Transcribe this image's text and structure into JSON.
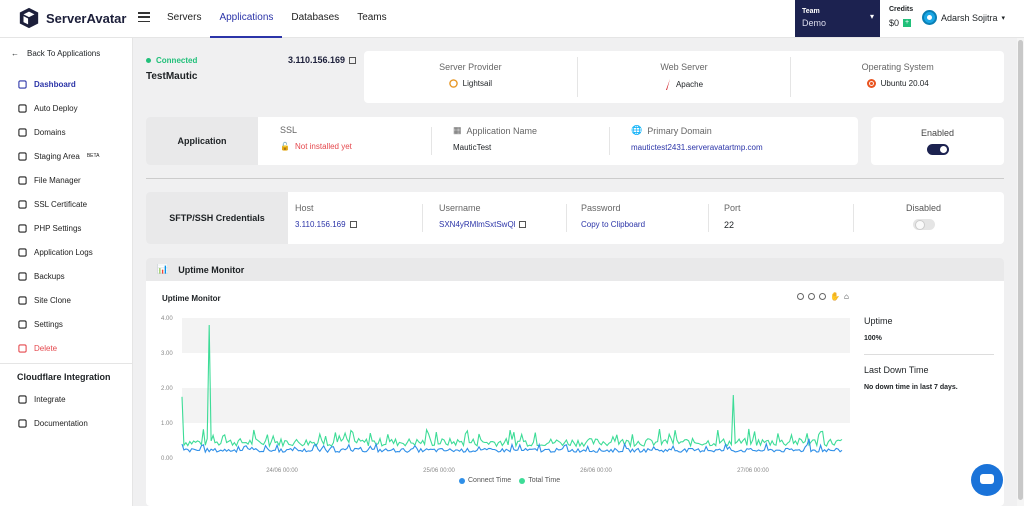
{
  "app": {
    "name": "ServerAvatar"
  },
  "nav": {
    "items": [
      "Servers",
      "Applications",
      "Databases",
      "Teams"
    ],
    "active": "Applications"
  },
  "team": {
    "label": "Team",
    "name": "Demo"
  },
  "credits": {
    "label": "Credits",
    "value": "$0"
  },
  "user": {
    "name": "Adarsh Sojitra"
  },
  "sidebar": {
    "back": "Back To Applications",
    "items": [
      {
        "label": "Dashboard",
        "icon": "dashboard-icon"
      },
      {
        "label": "Auto Deploy",
        "icon": "gear-icon"
      },
      {
        "label": "Domains",
        "icon": "sitemap-icon"
      },
      {
        "label": "Staging Area",
        "icon": "server-icon",
        "badge": "BETA"
      },
      {
        "label": "File Manager",
        "icon": "file-icon"
      },
      {
        "label": "SSL Certificate",
        "icon": "certificate-icon"
      },
      {
        "label": "PHP Settings",
        "icon": "gear-icon"
      },
      {
        "label": "Application Logs",
        "icon": "logs-icon"
      },
      {
        "label": "Backups",
        "icon": "backup-icon"
      },
      {
        "label": "Site Clone",
        "icon": "clone-icon"
      },
      {
        "label": "Settings",
        "icon": "gear-icon"
      },
      {
        "label": "Delete",
        "icon": "trash-icon"
      }
    ],
    "cloudflare_title": "Cloudflare Integration",
    "cloudflare_items": [
      {
        "label": "Integrate",
        "icon": "cloud-icon"
      },
      {
        "label": "Documentation",
        "icon": "book-icon"
      }
    ]
  },
  "application": {
    "status": "Connected",
    "name": "TestMautic",
    "ip": "3.110.156.169"
  },
  "server_info": {
    "provider_label": "Server Provider",
    "provider": "Lightsail",
    "webserver_label": "Web Server",
    "webserver": "Apache",
    "os_label": "Operating System",
    "os": "Ubuntu 20.04"
  },
  "app_panel": {
    "title": "Application",
    "ssl_label": "SSL",
    "ssl_value": "Not installed yet",
    "name_label": "Application Name",
    "name_value": "MauticTest",
    "domain_label": "Primary Domain",
    "domain_value": "mautictest2431.serveravatartmp.com"
  },
  "enabled": {
    "label": "Enabled",
    "state": true
  },
  "sftp": {
    "title": "SFTP/SSH Credentials",
    "host_label": "Host",
    "host": "3.110.156.169",
    "username_label": "Username",
    "username": "SXN4yRMlmSxtSwQl",
    "password_label": "Password",
    "password": "Copy to Clipboard",
    "port_label": "Port",
    "port": "22",
    "status_label": "Disabled",
    "state": false
  },
  "uptime": {
    "header": "Uptime Monitor",
    "chart_title": "Uptime Monitor",
    "uptime_label": "Uptime",
    "uptime_value": "100%",
    "downtime_label": "Last Down Time",
    "downtime_value": "No down time in last 7 days."
  },
  "chart_data": {
    "type": "line",
    "title": "Uptime Monitor",
    "ylim": [
      0,
      4
    ],
    "yticks": [
      "0.00",
      "1.00",
      "2.00",
      "3.00",
      "4.00"
    ],
    "xticks": [
      "24/06 00:00",
      "25/06 00:00",
      "26/06 00:00",
      "27/06 00:00"
    ],
    "series": [
      {
        "name": "Connect Time",
        "color": "#2f8fe8",
        "baseline": 0.22,
        "spikes": [
          [
            0.0,
            0.4
          ],
          [
            0.95,
            0.55
          ]
        ]
      },
      {
        "name": "Total Time",
        "color": "#3ddc97",
        "baseline": 0.45,
        "spikes": [
          [
            0.0,
            1.75
          ],
          [
            0.042,
            3.8
          ],
          [
            0.834,
            1.8
          ]
        ]
      }
    ],
    "grid": true
  }
}
